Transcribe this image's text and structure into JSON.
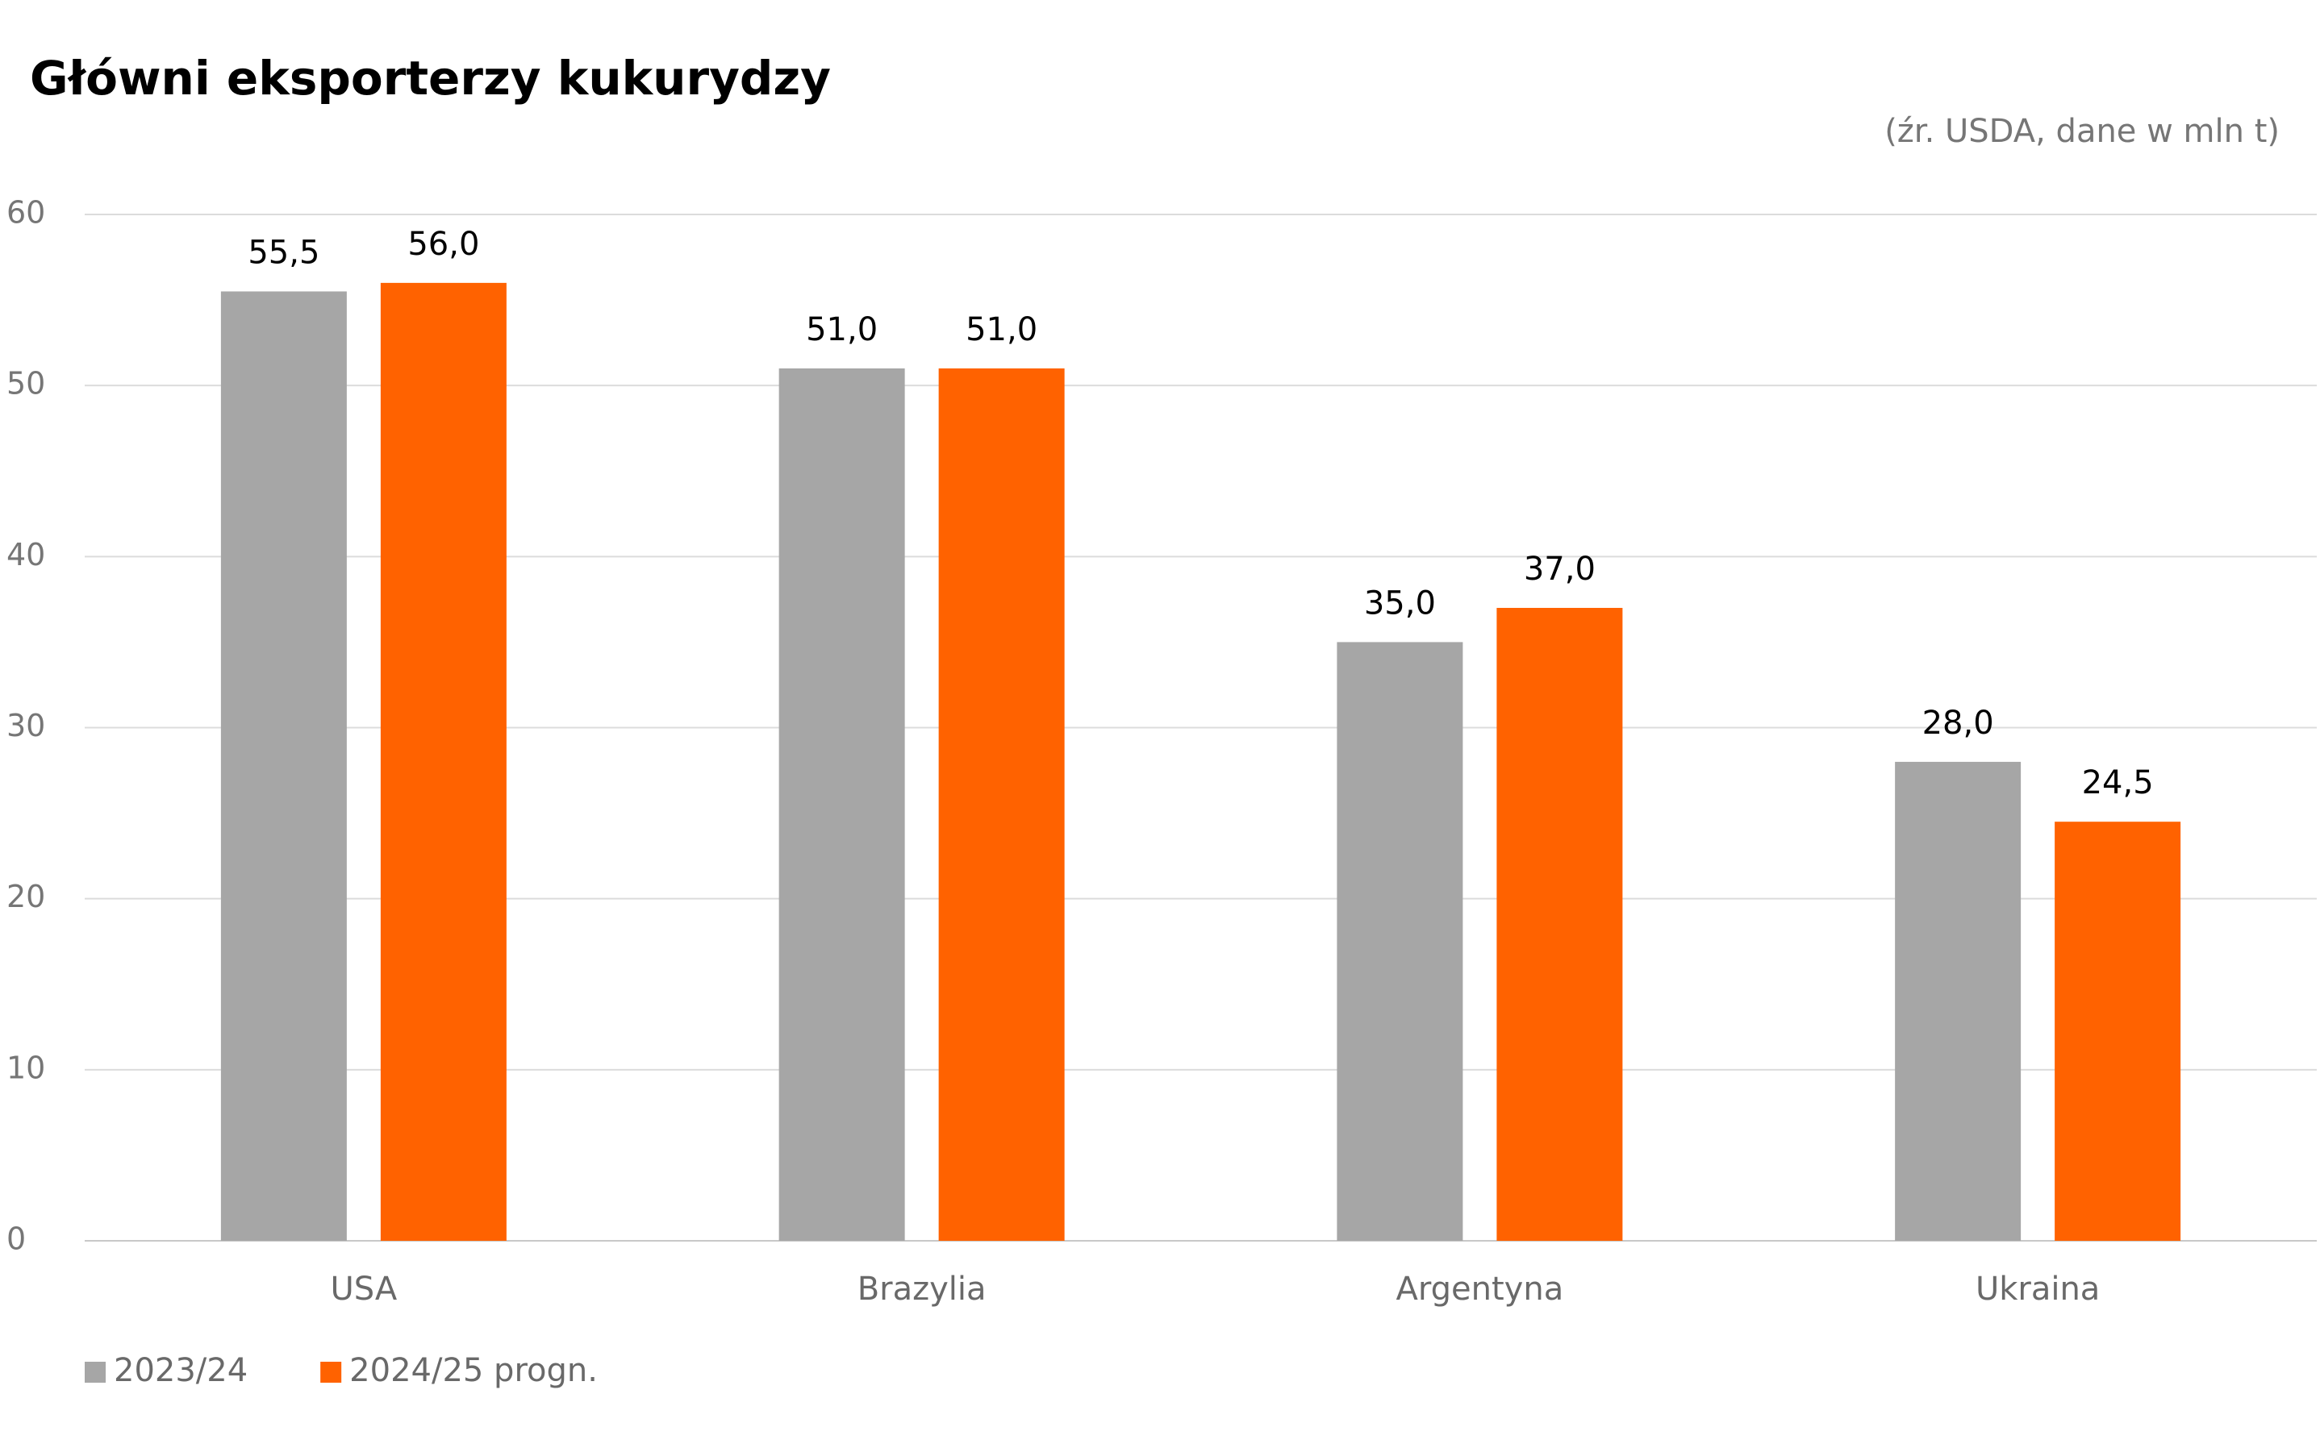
{
  "chart_data": {
    "type": "bar",
    "title": "Główni eksporterzy kukurydzy",
    "subtitle": "(źr. USDA, dane w mln t)",
    "categories": [
      "USA",
      "Brazylia",
      "Argentyna",
      "Ukraina"
    ],
    "series": [
      {
        "name": "2023/24",
        "color": "#a6a6a6",
        "values": [
          55.5,
          51.0,
          35.0,
          28.0
        ],
        "value_labels": [
          "55,5",
          "51,0",
          "35,0",
          "28,0"
        ]
      },
      {
        "name": "2024/25 progn.",
        "color": "#ff6200",
        "values": [
          56.0,
          51.0,
          37.0,
          24.5
        ],
        "value_labels": [
          "56,0",
          "51,0",
          "37,0",
          "24,5"
        ]
      }
    ],
    "ylim": [
      0,
      60
    ],
    "yticks": [
      0,
      10,
      20,
      30,
      40,
      50,
      60
    ],
    "grid": true,
    "legend": "bottom-left"
  }
}
